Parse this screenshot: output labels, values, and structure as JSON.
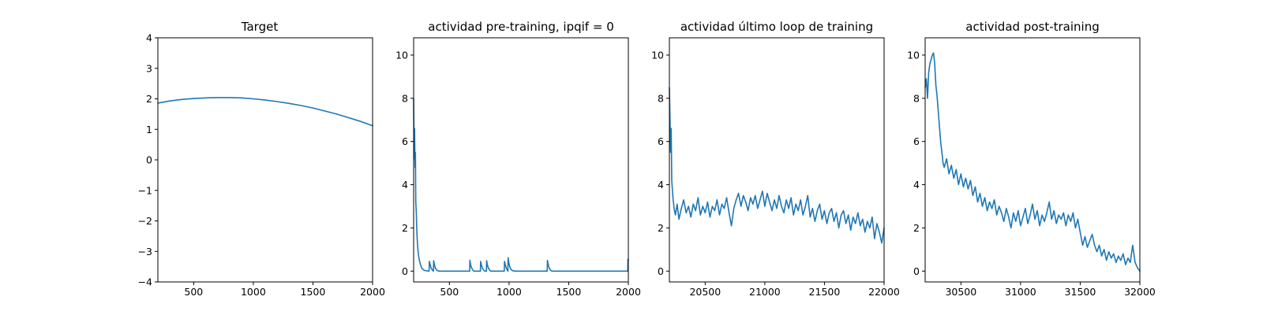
{
  "colors": {
    "line": "#1f77b4",
    "axes": "#000000",
    "background": "#ffffff"
  },
  "chart_data": [
    {
      "type": "line",
      "title": "Target",
      "xlabel": "",
      "ylabel": "",
      "xlim": [
        200,
        2000
      ],
      "ylim": [
        -4,
        4
      ],
      "xticks": [
        500,
        1000,
        1500,
        2000
      ],
      "yticks": [
        -4,
        -3,
        -2,
        -1,
        0,
        1,
        2,
        3,
        4
      ],
      "grid": false,
      "series": [
        {
          "x": [
            200,
            300,
            400,
            500,
            600,
            700,
            750,
            800,
            900,
            1000,
            1100,
            1200,
            1300,
            1400,
            1500,
            1600,
            1700,
            1800,
            1900,
            2000
          ],
          "y": [
            1.86,
            1.93,
            1.98,
            2.01,
            2.03,
            2.04,
            2.04,
            2.04,
            2.03,
            2.0,
            1.96,
            1.91,
            1.85,
            1.78,
            1.7,
            1.6,
            1.5,
            1.38,
            1.26,
            1.12
          ]
        }
      ]
    },
    {
      "type": "line",
      "title": "actividad pre-training, ipqif = 0",
      "xlabel": "",
      "ylabel": "",
      "xlim": [
        200,
        2000
      ],
      "ylim": [
        -0.5,
        10.8
      ],
      "xticks": [
        500,
        1000,
        1500,
        2000
      ],
      "yticks": [
        0,
        2,
        4,
        6,
        8,
        10
      ],
      "grid": false,
      "series": [
        {
          "x": [
            200,
            202,
            205,
            208,
            212,
            215,
            218,
            222,
            226,
            230,
            236,
            242,
            250,
            260,
            270,
            285,
            300,
            315,
            330,
            332,
            338,
            346,
            356,
            366,
            368,
            374,
            382,
            392,
            410,
            500,
            600,
            670,
            672,
            678,
            686,
            696,
            706,
            760,
            762,
            768,
            776,
            786,
            796,
            810,
            812,
            818,
            826,
            836,
            846,
            960,
            962,
            968,
            976,
            990,
            992,
            998,
            1006,
            1016,
            1030,
            1050,
            1200,
            1320,
            1322,
            1328,
            1336,
            1346,
            1360,
            1400,
            1600,
            1800,
            1995,
            1997,
            2000
          ],
          "y": [
            8.0,
            6.8,
            5.2,
            6.6,
            4.8,
            5.5,
            3.2,
            2.8,
            2.0,
            1.5,
            1.0,
            0.7,
            0.45,
            0.25,
            0.12,
            0.05,
            0.02,
            0.01,
            0.0,
            0.45,
            0.3,
            0.15,
            0.05,
            0.0,
            0.48,
            0.3,
            0.15,
            0.05,
            0.0,
            0.0,
            0.0,
            0.0,
            0.5,
            0.3,
            0.15,
            0.05,
            0.0,
            0.0,
            0.45,
            0.3,
            0.15,
            0.05,
            0.0,
            0.0,
            0.48,
            0.3,
            0.15,
            0.05,
            0.0,
            0.0,
            0.45,
            0.3,
            0.15,
            0.0,
            0.62,
            0.4,
            0.2,
            0.08,
            0.02,
            0.0,
            0.0,
            0.0,
            0.5,
            0.3,
            0.15,
            0.05,
            0.0,
            0.0,
            0.0,
            0.0,
            0.0,
            0.55,
            0.5
          ]
        }
      ]
    },
    {
      "type": "line",
      "title": "actividad último loop de training",
      "xlabel": "",
      "ylabel": "",
      "xlim": [
        20200,
        22000
      ],
      "ylim": [
        -0.5,
        10.8
      ],
      "xticks": [
        20500,
        21000,
        21500,
        22000
      ],
      "yticks": [
        0,
        2,
        4,
        6,
        8,
        10
      ],
      "grid": false,
      "series": [
        {
          "x": [
            20200,
            20205,
            20210,
            20215,
            20220,
            20230,
            20240,
            20250,
            20265,
            20280,
            20300,
            20320,
            20340,
            20360,
            20380,
            20400,
            20420,
            20440,
            20460,
            20480,
            20500,
            20520,
            20540,
            20560,
            20580,
            20600,
            20620,
            20640,
            20660,
            20680,
            20700,
            20720,
            20740,
            20760,
            20780,
            20800,
            20820,
            20840,
            20860,
            20880,
            20900,
            20920,
            20940,
            20960,
            20980,
            21000,
            21020,
            21040,
            21060,
            21080,
            21100,
            21120,
            21140,
            21160,
            21180,
            21200,
            21220,
            21240,
            21260,
            21280,
            21300,
            21320,
            21340,
            21360,
            21380,
            21400,
            21420,
            21440,
            21460,
            21480,
            21500,
            21520,
            21540,
            21560,
            21580,
            21600,
            21620,
            21640,
            21660,
            21680,
            21700,
            21720,
            21740,
            21760,
            21780,
            21800,
            21820,
            21840,
            21860,
            21880,
            21900,
            21920,
            21940,
            21960,
            21980,
            22000
          ],
          "y": [
            8.5,
            7.0,
            5.5,
            6.6,
            4.2,
            3.4,
            2.9,
            2.6,
            3.1,
            2.4,
            2.9,
            3.3,
            2.7,
            3.0,
            2.5,
            3.1,
            2.8,
            3.4,
            2.6,
            3.0,
            2.7,
            3.2,
            2.5,
            3.0,
            2.8,
            3.3,
            2.6,
            3.1,
            2.9,
            3.4,
            2.7,
            2.1,
            2.9,
            3.3,
            3.6,
            3.0,
            3.5,
            3.2,
            2.8,
            3.4,
            3.1,
            3.5,
            2.9,
            3.3,
            3.7,
            3.0,
            3.6,
            3.2,
            2.8,
            3.3,
            2.9,
            3.5,
            3.0,
            2.7,
            3.3,
            2.9,
            3.4,
            2.6,
            3.1,
            2.8,
            3.3,
            2.6,
            3.0,
            3.5,
            2.5,
            2.9,
            2.3,
            2.8,
            3.1,
            2.4,
            2.8,
            2.2,
            2.7,
            2.9,
            2.3,
            2.7,
            2.0,
            2.6,
            2.8,
            2.2,
            2.6,
            1.9,
            2.5,
            2.2,
            2.7,
            2.1,
            2.4,
            1.8,
            2.3,
            2.0,
            2.5,
            1.5,
            2.2,
            1.8,
            1.3,
            2.0
          ]
        }
      ]
    },
    {
      "type": "line",
      "title": "actividad post-training",
      "xlabel": "",
      "ylabel": "",
      "xlim": [
        30200,
        32000
      ],
      "ylim": [
        -0.5,
        10.8
      ],
      "xticks": [
        30500,
        31000,
        31500,
        32000
      ],
      "yticks": [
        0,
        2,
        4,
        6,
        8,
        10
      ],
      "grid": false,
      "series": [
        {
          "x": [
            30200,
            30210,
            30220,
            30230,
            30240,
            30250,
            30260,
            30270,
            30280,
            30290,
            30300,
            30310,
            30320,
            30330,
            30340,
            30350,
            30360,
            30380,
            30400,
            30420,
            30440,
            30460,
            30480,
            30500,
            30520,
            30540,
            30560,
            30580,
            30600,
            30620,
            30640,
            30660,
            30680,
            30700,
            30720,
            30740,
            30760,
            30780,
            30800,
            30820,
            30840,
            30860,
            30880,
            30900,
            30920,
            30940,
            30960,
            30980,
            31000,
            31020,
            31040,
            31060,
            31080,
            31100,
            31120,
            31140,
            31160,
            31180,
            31200,
            31220,
            31240,
            31260,
            31280,
            31300,
            31320,
            31340,
            31360,
            31380,
            31400,
            31420,
            31440,
            31460,
            31480,
            31500,
            31520,
            31540,
            31560,
            31580,
            31600,
            31620,
            31640,
            31660,
            31680,
            31700,
            31720,
            31740,
            31760,
            31780,
            31800,
            31820,
            31840,
            31860,
            31880,
            31900,
            31920,
            31940,
            31960,
            31980,
            32000
          ],
          "y": [
            8.5,
            8.9,
            8.0,
            9.2,
            9.6,
            9.8,
            10.0,
            10.1,
            9.6,
            8.6,
            8.1,
            7.4,
            6.7,
            6.0,
            5.5,
            5.0,
            4.8,
            5.2,
            4.5,
            4.9,
            4.3,
            4.7,
            4.0,
            4.5,
            3.9,
            4.3,
            3.8,
            4.2,
            3.5,
            3.9,
            3.2,
            3.6,
            3.0,
            3.4,
            2.8,
            3.2,
            2.9,
            3.3,
            2.6,
            3.0,
            2.7,
            2.3,
            2.9,
            2.5,
            2.0,
            2.7,
            2.3,
            2.8,
            2.1,
            2.5,
            2.9,
            2.2,
            2.6,
            3.1,
            2.4,
            2.8,
            2.1,
            2.6,
            2.3,
            2.7,
            3.2,
            2.4,
            2.8,
            2.2,
            2.6,
            2.4,
            2.7,
            2.1,
            2.6,
            2.3,
            2.7,
            2.0,
            2.4,
            1.8,
            1.2,
            1.6,
            1.1,
            1.4,
            1.7,
            1.2,
            0.9,
            1.2,
            0.7,
            1.0,
            0.5,
            0.9,
            0.6,
            0.8,
            0.4,
            0.7,
            0.5,
            0.8,
            0.3,
            0.6,
            0.4,
            1.2,
            0.4,
            0.15,
            0.0
          ]
        }
      ]
    }
  ]
}
